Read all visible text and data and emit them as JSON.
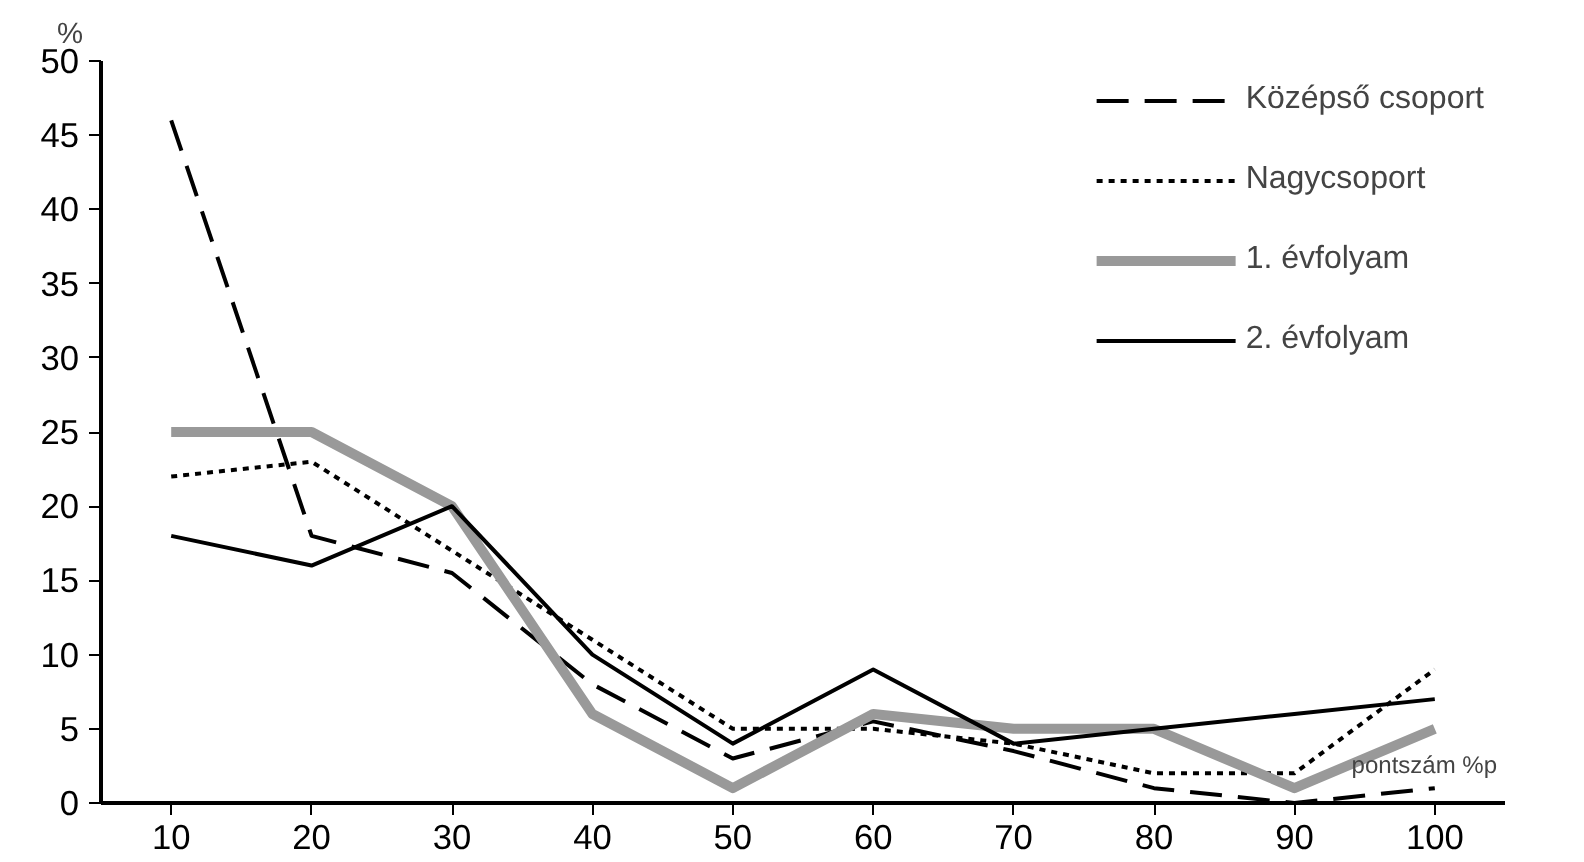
{
  "chart_data": {
    "type": "line",
    "ylabel": "%",
    "xlabel": "pontszám %p",
    "categories": [
      "10",
      "20",
      "30",
      "40",
      "50",
      "60",
      "70",
      "80",
      "90",
      "100"
    ],
    "series": [
      {
        "name": "Középső csoport",
        "color": "#000000",
        "line_style": "dashed",
        "values": [
          46,
          18,
          15.5,
          8,
          3,
          5.5,
          3.5,
          1,
          0,
          1
        ]
      },
      {
        "name": "Nagycsoport",
        "color": "#000000",
        "line_style": "dotted",
        "values": [
          22,
          23,
          17,
          11,
          5,
          5,
          4,
          2,
          2,
          9
        ]
      },
      {
        "name": "1. évfolyam",
        "color": "#999999",
        "line_style": "solid",
        "values": [
          25,
          25,
          20,
          6,
          1,
          6,
          5,
          5,
          1,
          5
        ]
      },
      {
        "name": "2. évfolyam",
        "color": "#000000",
        "line_style": "solid",
        "values": [
          18,
          16,
          20,
          10,
          4,
          9,
          4,
          5,
          6,
          7
        ]
      }
    ],
    "ylim": [
      0,
      50
    ],
    "yticks": [
      0,
      5,
      10,
      15,
      20,
      25,
      30,
      35,
      40,
      45,
      50
    ],
    "grid": false,
    "legend": "top right"
  }
}
